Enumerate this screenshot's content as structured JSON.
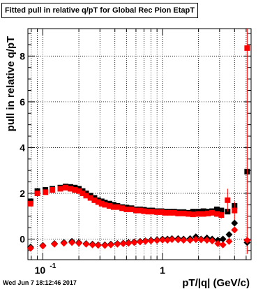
{
  "chart_data": {
    "type": "scatter",
    "title": "Fitted pull in relative q/pT  for Global Rec Pion EtapT",
    "xlabel": "pT/|q| (GeV/c)",
    "ylabel": "pull in relative q/pT",
    "x_scale": "log",
    "xlim": [
      0.075,
      5.5
    ],
    "ylim": [
      -0.9,
      9.2
    ],
    "grid": true,
    "xticks": [
      {
        "value": 0.1,
        "label": "10",
        "exp": "-1"
      },
      {
        "value": 1,
        "label": "1",
        "exp": ""
      }
    ],
    "yticks": [
      {
        "value": 0,
        "label": "0"
      },
      {
        "value": 2,
        "label": "2"
      },
      {
        "value": 4,
        "label": "4"
      },
      {
        "value": 6,
        "label": "6"
      },
      {
        "value": 8,
        "label": "8"
      }
    ],
    "series": [
      {
        "marker": "square",
        "color": "#000000",
        "x": [
          0.079,
          0.09,
          0.105,
          0.12,
          0.14,
          0.155,
          0.17,
          0.185,
          0.2,
          0.215,
          0.23,
          0.25,
          0.27,
          0.29,
          0.31,
          0.33,
          0.36,
          0.39,
          0.42,
          0.46,
          0.5,
          0.55,
          0.6,
          0.65,
          0.7,
          0.76,
          0.82,
          0.9,
          0.98,
          1.05,
          1.15,
          1.25,
          1.35,
          1.5,
          1.65,
          1.8,
          2.0,
          2.2,
          2.4,
          2.6,
          2.85,
          3.1,
          3.5,
          4.0,
          5.1
        ],
        "y": [
          1.65,
          2.1,
          2.15,
          2.2,
          2.25,
          2.3,
          2.28,
          2.25,
          2.2,
          2.1,
          2.0,
          1.9,
          1.8,
          1.7,
          1.65,
          1.6,
          1.55,
          1.5,
          1.45,
          1.4,
          1.38,
          1.35,
          1.3,
          1.3,
          1.28,
          1.25,
          1.25,
          1.22,
          1.22,
          1.2,
          1.2,
          1.2,
          1.18,
          1.18,
          1.15,
          1.2,
          1.2,
          1.22,
          1.2,
          1.22,
          1.3,
          1.25,
          1.2,
          1.45,
          2.95
        ]
      },
      {
        "marker": "square",
        "color": "#ff0000",
        "x": [
          0.079,
          0.09,
          0.105,
          0.12,
          0.14,
          0.155,
          0.17,
          0.185,
          0.2,
          0.215,
          0.23,
          0.25,
          0.27,
          0.29,
          0.31,
          0.33,
          0.36,
          0.39,
          0.42,
          0.46,
          0.5,
          0.55,
          0.6,
          0.65,
          0.7,
          0.76,
          0.82,
          0.9,
          0.98,
          1.05,
          1.15,
          1.25,
          1.35,
          1.5,
          1.65,
          1.8,
          2.0,
          2.2,
          2.4,
          2.6,
          2.85,
          3.1,
          3.5,
          4.0,
          5.1
        ],
        "y": [
          1.55,
          2.0,
          2.05,
          2.15,
          2.2,
          2.25,
          2.2,
          2.15,
          2.1,
          2.0,
          1.9,
          1.8,
          1.7,
          1.62,
          1.55,
          1.5,
          1.45,
          1.4,
          1.4,
          1.35,
          1.3,
          1.3,
          1.25,
          1.25,
          1.22,
          1.2,
          1.2,
          1.18,
          1.18,
          1.15,
          1.15,
          1.15,
          1.12,
          1.12,
          1.1,
          1.08,
          1.1,
          1.1,
          1.12,
          1.15,
          1.1,
          1.05,
          1.7,
          1.25,
          8.35
        ],
        "err": [
          0.05,
          0.05,
          0.05,
          0.05,
          0.05,
          0.05,
          0.05,
          0.05,
          0.05,
          0.05,
          0.05,
          0.05,
          0.05,
          0.05,
          0.05,
          0.05,
          0.05,
          0.05,
          0.05,
          0.05,
          0.05,
          0.05,
          0.05,
          0.05,
          0.05,
          0.05,
          0.05,
          0.05,
          0.05,
          0.05,
          0.05,
          0.05,
          0.05,
          0.05,
          0.05,
          0.05,
          0.05,
          0.05,
          0.05,
          0.05,
          0.1,
          0.15,
          0.5,
          0.4,
          9.0
        ]
      },
      {
        "marker": "diamond",
        "color": "#000000",
        "x": [
          0.079,
          0.1,
          0.125,
          0.15,
          0.175,
          0.2,
          0.23,
          0.26,
          0.29,
          0.33,
          0.37,
          0.42,
          0.47,
          0.52,
          0.58,
          0.65,
          0.72,
          0.8,
          0.9,
          1.0,
          1.1,
          1.2,
          1.35,
          1.5,
          1.7,
          1.9,
          2.1,
          2.35,
          2.6,
          2.9,
          3.2,
          3.6,
          4.0,
          5.1
        ],
        "y": [
          -0.35,
          -0.28,
          -0.2,
          -0.15,
          -0.1,
          -0.15,
          -0.2,
          -0.22,
          -0.25,
          -0.25,
          -0.22,
          -0.2,
          -0.18,
          -0.15,
          -0.12,
          -0.1,
          -0.08,
          -0.05,
          -0.03,
          0.0,
          0.0,
          0.02,
          0.02,
          0.0,
          0.02,
          0.1,
          0.0,
          0.05,
          0.0,
          -0.05,
          0.0,
          0.2,
          0.7,
          -0.15
        ]
      },
      {
        "marker": "diamond",
        "color": "#ff0000",
        "x": [
          0.079,
          0.1,
          0.125,
          0.15,
          0.175,
          0.2,
          0.23,
          0.26,
          0.29,
          0.33,
          0.37,
          0.42,
          0.47,
          0.52,
          0.58,
          0.65,
          0.72,
          0.8,
          0.9,
          1.0,
          1.1,
          1.2,
          1.35,
          1.5,
          1.7,
          1.9,
          2.1,
          2.35,
          2.6,
          2.9,
          3.2,
          3.6,
          4.0,
          5.1
        ],
        "y": [
          -0.4,
          -0.3,
          -0.22,
          -0.18,
          -0.15,
          -0.18,
          -0.22,
          -0.25,
          -0.27,
          -0.28,
          -0.25,
          -0.22,
          -0.2,
          -0.18,
          -0.15,
          -0.12,
          -0.1,
          -0.08,
          -0.06,
          -0.04,
          -0.05,
          -0.02,
          -0.03,
          -0.05,
          -0.05,
          -0.02,
          -0.03,
          -0.05,
          -0.08,
          -0.2,
          -0.25,
          -0.1,
          0.4,
          -0.05
        ]
      }
    ]
  },
  "footer": {
    "timestamp": "Wed Jun  7 18:12:46 2017"
  }
}
